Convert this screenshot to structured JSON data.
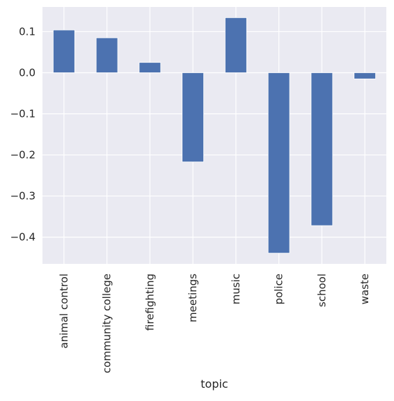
{
  "chart_data": {
    "type": "bar",
    "title": "",
    "xlabel": "topic",
    "ylabel": "",
    "categories": [
      "animal control",
      "community college",
      "firefighting",
      "meetings",
      "music",
      "police",
      "school",
      "waste"
    ],
    "values": [
      0.104,
      0.085,
      0.025,
      -0.217,
      0.134,
      -0.439,
      -0.372,
      -0.015
    ],
    "ylim": [
      -0.465,
      0.16
    ],
    "yticks": [
      0.1,
      0.0,
      -0.1,
      -0.2,
      -0.3,
      -0.4
    ],
    "ytick_labels": [
      "0.1",
      "0.0",
      "−0.1",
      "−0.2",
      "−0.3",
      "−0.4"
    ],
    "grid": true,
    "legend": "none",
    "colors": {
      "bar": "#4c72b0",
      "background": "#eaeaf2",
      "grid": "#ffffff"
    }
  }
}
